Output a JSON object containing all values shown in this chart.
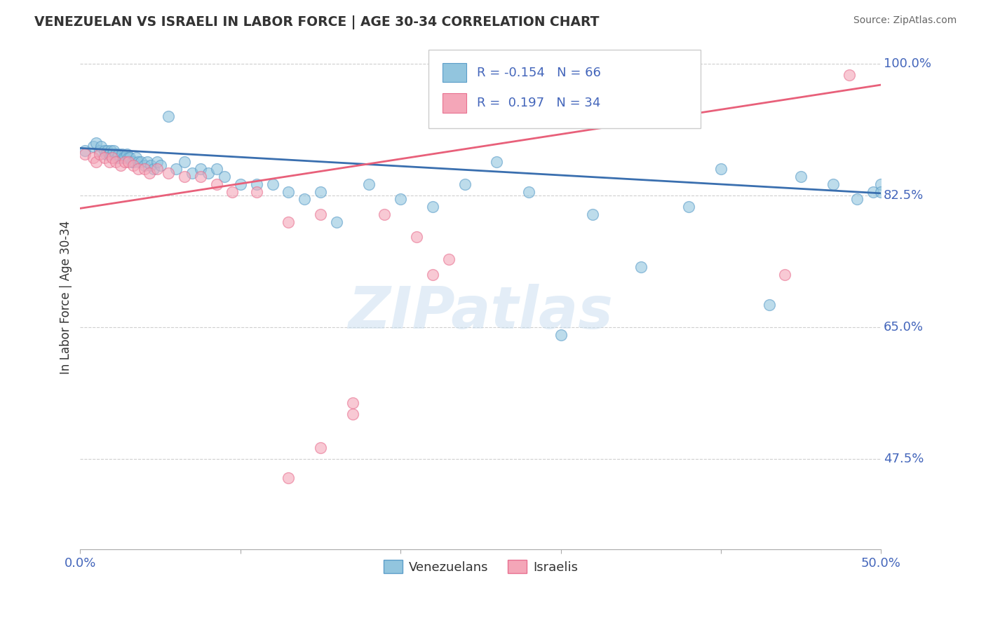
{
  "title": "VENEZUELAN VS ISRAELI IN LABOR FORCE | AGE 30-34 CORRELATION CHART",
  "source": "Source: ZipAtlas.com",
  "ylabel": "In Labor Force | Age 30-34",
  "xlim": [
    0.0,
    0.5
  ],
  "ylim": [
    0.355,
    1.025
  ],
  "ytick_positions": [
    0.475,
    0.65,
    0.825,
    1.0
  ],
  "ytick_labels": [
    "47.5%",
    "65.0%",
    "82.5%",
    "100.0%"
  ],
  "blue_color": "#92c5de",
  "pink_color": "#f4a6b8",
  "blue_edge_color": "#5b9dc9",
  "pink_edge_color": "#e87090",
  "blue_line_color": "#3a6faf",
  "pink_line_color": "#e8607a",
  "legend_r_blue": "-0.154",
  "legend_n_blue": "66",
  "legend_r_pink": "0.197",
  "legend_n_pink": "34",
  "legend_label_blue": "Venezuelans",
  "legend_label_pink": "Israelis",
  "watermark": "ZIPatlas",
  "background_color": "#ffffff",
  "grid_color": "#bbbbbb",
  "title_color": "#333333",
  "axis_label_color": "#4466bb",
  "tick_label_color": "#4466bb",
  "legend_text_color": "#4466bb",
  "ylabel_color": "#333333",
  "blue_scatter_x": [
    0.003,
    0.008,
    0.01,
    0.012,
    0.013,
    0.015,
    0.016,
    0.017,
    0.018,
    0.019,
    0.02,
    0.021,
    0.022,
    0.023,
    0.024,
    0.025,
    0.026,
    0.027,
    0.028,
    0.029,
    0.03,
    0.031,
    0.032,
    0.033,
    0.035,
    0.036,
    0.038,
    0.04,
    0.042,
    0.044,
    0.046,
    0.048,
    0.05,
    0.055,
    0.06,
    0.065,
    0.07,
    0.075,
    0.08,
    0.085,
    0.09,
    0.1,
    0.11,
    0.12,
    0.13,
    0.14,
    0.15,
    0.16,
    0.18,
    0.2,
    0.22,
    0.24,
    0.26,
    0.28,
    0.3,
    0.32,
    0.35,
    0.38,
    0.4,
    0.43,
    0.45,
    0.47,
    0.485,
    0.495,
    0.5,
    0.5
  ],
  "blue_scatter_y": [
    0.885,
    0.89,
    0.895,
    0.885,
    0.89,
    0.885,
    0.88,
    0.885,
    0.88,
    0.885,
    0.88,
    0.885,
    0.88,
    0.875,
    0.88,
    0.875,
    0.88,
    0.875,
    0.875,
    0.88,
    0.875,
    0.875,
    0.87,
    0.87,
    0.875,
    0.87,
    0.87,
    0.865,
    0.87,
    0.865,
    0.86,
    0.87,
    0.865,
    0.93,
    0.86,
    0.87,
    0.855,
    0.86,
    0.855,
    0.86,
    0.85,
    0.84,
    0.84,
    0.84,
    0.83,
    0.82,
    0.83,
    0.79,
    0.84,
    0.82,
    0.81,
    0.84,
    0.87,
    0.83,
    0.64,
    0.8,
    0.73,
    0.81,
    0.86,
    0.68,
    0.85,
    0.84,
    0.82,
    0.83,
    0.84,
    0.83
  ],
  "pink_scatter_x": [
    0.003,
    0.008,
    0.01,
    0.012,
    0.015,
    0.018,
    0.02,
    0.022,
    0.025,
    0.028,
    0.03,
    0.033,
    0.036,
    0.04,
    0.043,
    0.048,
    0.055,
    0.065,
    0.075,
    0.085,
    0.095,
    0.11,
    0.13,
    0.15,
    0.17,
    0.19,
    0.21,
    0.23,
    0.13,
    0.15,
    0.17,
    0.22,
    0.44,
    0.48
  ],
  "pink_scatter_y": [
    0.88,
    0.875,
    0.87,
    0.88,
    0.875,
    0.87,
    0.875,
    0.87,
    0.865,
    0.87,
    0.87,
    0.865,
    0.86,
    0.86,
    0.855,
    0.86,
    0.855,
    0.85,
    0.85,
    0.84,
    0.83,
    0.83,
    0.79,
    0.8,
    0.55,
    0.8,
    0.77,
    0.74,
    0.45,
    0.49,
    0.535,
    0.72,
    0.72,
    0.985
  ],
  "blue_trend_x": [
    0.0,
    0.5
  ],
  "blue_trend_y": [
    0.888,
    0.828
  ],
  "pink_trend_x": [
    0.0,
    0.5
  ],
  "pink_trend_y": [
    0.808,
    0.972
  ]
}
